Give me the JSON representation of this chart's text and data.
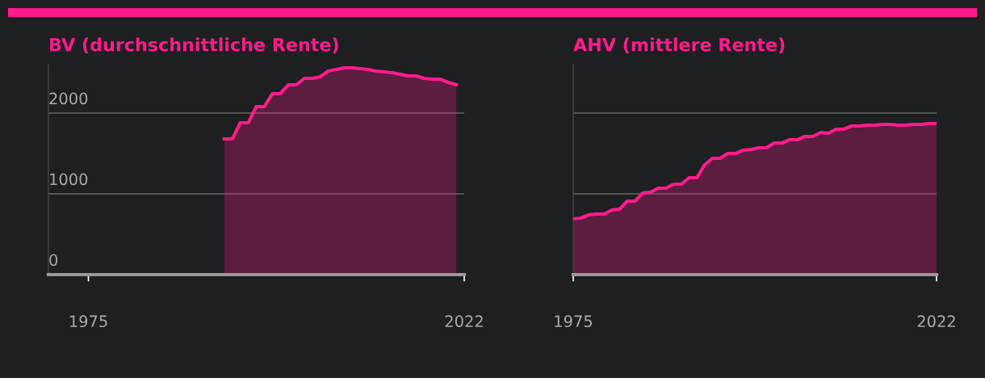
{
  "chart_data": [
    {
      "type": "area",
      "title": "BV (durchschnittliche Rente)",
      "xlim": [
        1970,
        2022
      ],
      "xticks": [
        1975,
        2022
      ],
      "ylim": [
        0,
        2600
      ],
      "yticks": [
        0,
        1000,
        2000
      ],
      "grid": "y",
      "legend": false,
      "marker": "none",
      "line_style": "solid",
      "series": [
        {
          "color": "#ff1a8c",
          "x": [
            1992,
            1993,
            1994,
            1995,
            1996,
            1997,
            1998,
            1999,
            2000,
            2001,
            2002,
            2003,
            2004,
            2005,
            2006,
            2007,
            2008,
            2009,
            2010,
            2011,
            2012,
            2013,
            2014,
            2015,
            2016,
            2017,
            2018,
            2019,
            2020,
            2021
          ],
          "values": [
            1680,
            1680,
            1880,
            1880,
            2080,
            2080,
            2240,
            2240,
            2350,
            2350,
            2430,
            2430,
            2450,
            2520,
            2540,
            2560,
            2560,
            2550,
            2540,
            2520,
            2510,
            2500,
            2480,
            2460,
            2460,
            2430,
            2420,
            2420,
            2380,
            2350
          ]
        }
      ]
    },
    {
      "type": "area",
      "title": "AHV (mittlere Rente)",
      "xlim": [
        1975,
        2022
      ],
      "xticks": [
        1975,
        2022
      ],
      "ylim": [
        0,
        2600
      ],
      "yticks": [
        0,
        1000,
        2000
      ],
      "grid": "y",
      "legend": false,
      "marker": "none",
      "line_style": "solid",
      "tick_labels": "x",
      "series": [
        {
          "color": "#ff1a8c",
          "x": [
            1975,
            1976,
            1977,
            1978,
            1979,
            1980,
            1981,
            1982,
            1983,
            1984,
            1985,
            1986,
            1987,
            1988,
            1989,
            1990,
            1991,
            1992,
            1993,
            1994,
            1995,
            1996,
            1997,
            1998,
            1999,
            2000,
            2001,
            2002,
            2003,
            2004,
            2005,
            2006,
            2007,
            2008,
            2009,
            2010,
            2011,
            2012,
            2013,
            2014,
            2015,
            2016,
            2017,
            2018,
            2019,
            2020,
            2021,
            2022
          ],
          "values": [
            690,
            700,
            740,
            750,
            750,
            800,
            810,
            910,
            910,
            1010,
            1020,
            1070,
            1070,
            1120,
            1120,
            1200,
            1200,
            1360,
            1440,
            1440,
            1500,
            1500,
            1540,
            1550,
            1570,
            1570,
            1630,
            1630,
            1670,
            1670,
            1710,
            1710,
            1760,
            1750,
            1800,
            1800,
            1840,
            1840,
            1850,
            1850,
            1860,
            1860,
            1850,
            1850,
            1860,
            1860,
            1870,
            1870
          ]
        }
      ]
    }
  ]
}
